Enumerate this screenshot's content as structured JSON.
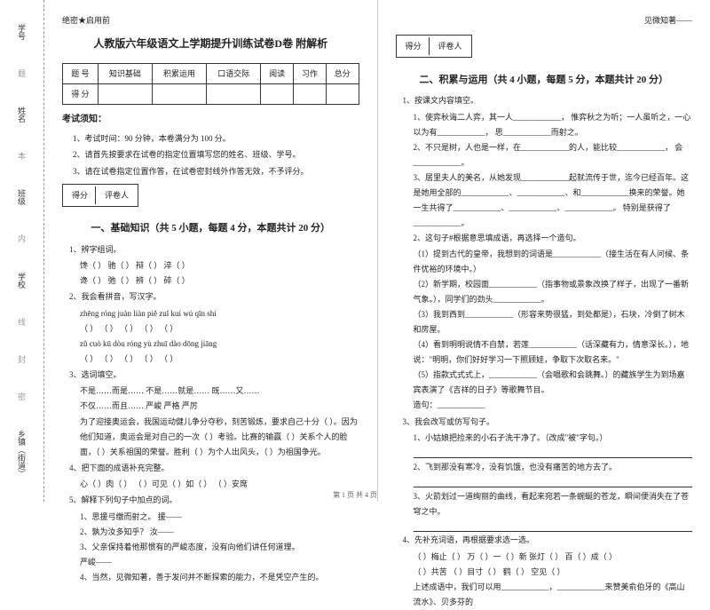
{
  "binding": {
    "labels": [
      "学号",
      "姓名",
      "班级",
      "学校",
      "乡镇（街道）"
    ],
    "marks": [
      "题",
      "本",
      "内",
      "线",
      "封",
      "密"
    ]
  },
  "secret": "绝密★启用前",
  "title": "人教版六年级语文上学期提升训练试卷D卷 附解析",
  "scoreTable": {
    "headers": [
      "题  号",
      "知识基础",
      "积累运用",
      "口语交际",
      "阅读",
      "习作",
      "总分"
    ],
    "row2": [
      "得  分",
      "",
      "",
      "",
      "",
      "",
      ""
    ]
  },
  "noticeTitle": "考试须知：",
  "notices": [
    "1、考试时间：90 分钟，本卷满分为 100 分。",
    "2、请首先按要求在试卷的指定位置填写您的姓名、班级、学号。",
    "3、请在试卷指定位置作答，在试卷密封线外作答无效，不予评分。"
  ],
  "gradeBox": [
    "得分",
    "评卷人"
  ],
  "section1": "一、基础知识（共 5 小题，每题 4 分，本题共计 20 分）",
  "q1": {
    "t": "1、辨字组词。",
    "rows": [
      "馋（     ） 驰（     ） 辩（     ） 淬（     ）",
      "谗（     ） 弛（     ） 辨（     ） 碎（     ）"
    ]
  },
  "q2": {
    "t": "2、我会看拼音，写汉字。",
    "pinyin1": "zhēng róng     juàn liàn     piě zuǐ     kuí wú     qīn shí",
    "blanks1": "（        ）   （        ）   （        ）   （        ）   （        ）",
    "pinyin2": "zǔ cuò     kū dòu     róng yù     zhuī dào     dōng jiāng",
    "blanks2": "（        ）   （        ）   （        ）   （        ）   （        ）"
  },
  "q3": {
    "t": "3、选词填空。",
    "opts": "不是……而是……    不是……就是……    既……又……",
    "opts2": "不仅……而且……    严峻    严格    严厉",
    "a": "为了迎接奥运会，我国运动健儿争分夺秒，刻苦锻炼，要求自己十分（     ）。因为他们知道，奥运会是对自己的一次（     ）考验。比赛的输赢（     ）关系个人的脸面，（     ）关系祖国的荣誉。胜利（     ）为个人出风头，（     ）为祖国争光。"
  },
  "q4": {
    "t": "4、把下面的成语补充完整。",
    "row": "心（     ）肉（     ）    （     ）可见（     ）如（     ）    （     ）安席"
  },
  "q5": {
    "t": "5、解释下列句子中加点的词。",
    "items": [
      "1、思援弓缴而射之。    援——",
      "2、孰为汝多知乎？    汝——",
      "3、父亲保持着他那惯有的严峻态度，没有向他们讲任何道理。",
      "    严峻——",
      "4、当然，见微知著，善于发问并不断探索的能力，不是凭空产生的。"
    ]
  },
  "rightTitle": "见微知著——",
  "section2": "二、积累与运用（共 4 小题，每题 5 分，本题共计 20 分）",
  "q21": {
    "t": "1、按课文内容填空。",
    "items": [
      "1、使弈秋诲二人弈，其一人____________，  惟弈秋之为听；一人虽听之，一心以为有____________，  思____________而射之。",
      "2、不只是树，人也是一样，在____________的人，能比较____________，  会____________。",
      "3、居里夫人的美名，从她发现____________起就流传于世，迄今已经百年。这是她用全部的____________、____________、和____________换来的荣誉。她一生共得了____________、____________、____________。  特别是获得了____________。",
      "2、这句子#根据意思填成语，再选择一个造句。",
      "（1）提到古代的皇帝，我想到的词语是____________（接生活在有人问候、条件优裕的环境中。）",
      "（2）新学期，校园面____________（指事物或景象改换了样子，出现了一番新气象。），同学们的劲头____________。",
      "（3）我到西到____________（形容来势很猛，到处都是），石块，冷倒了树木和房屋。",
      "（4）看到明明说情不自禁，若莲____________（话深藏有力，情意深长。），地说：\"明明，你们好好学习一下照顾娃，争取下次取名来。\"",
      "（5）指款式式式上，____________（会唱歌和会跳舞。）的藏族学生为到场嘉宾表演了《吉祥的日子》等歌舞节目。",
      "    造句：____________"
    ]
  },
  "q23": {
    "t": "3、我会改写或仿写句子。",
    "items": [
      "1、小姑娘把捡来的小石子洗干净了。（改成\"被\"字句。）",
      "2、飞到那没有寒冷，没有饥饿，也没有痛苦的地方去了。",
      "3、火箭划过一道绚丽的曲线，看起来宛若一条蜿蜒的苍龙，瞬间便消失在了苍穹之中。"
    ]
  },
  "q24": {
    "t": "4、先补充词语，再根据要求选一选。",
    "row1": "（     ）梅止（     ）    万（     ）一（     ）新    张灯（     ）    百（     ）成（     ）",
    "row2": "（     ）共苦    （     ）目寸（     ）    鹤（     ）    空见（     ）",
    "last": "上述成语中，我们可以用____________，____________来赞美俞伯牙的《高山流水》、贝多芬的"
  },
  "footer": "第 1 页  共 4 页"
}
